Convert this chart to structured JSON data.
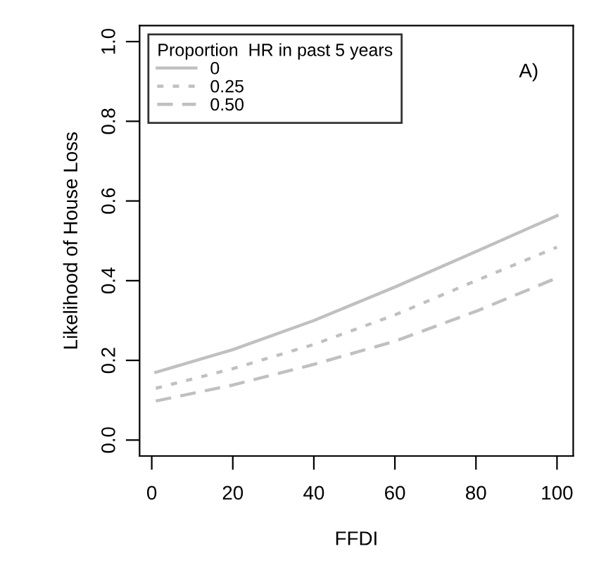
{
  "chart_data": {
    "type": "line",
    "xlabel": "FFDI",
    "ylabel": "Likelihood of House Loss",
    "legend_title": "Proportion  HR in past 5 years",
    "legend": "top left",
    "annotations": [
      "A)"
    ],
    "x": [
      1,
      20,
      40,
      60,
      80,
      100
    ],
    "series": [
      {
        "name": "0",
        "color": "#c0c0c0",
        "line_style": "solid",
        "values": [
          0.17,
          0.227,
          0.3,
          0.384,
          0.473,
          0.563
        ]
      },
      {
        "name": "0.25",
        "color": "#c0c0c0",
        "line_style": "dotted",
        "values": [
          0.13,
          0.179,
          0.24,
          0.314,
          0.4,
          0.484
        ]
      },
      {
        "name": "0.50",
        "color": "#c0c0c0",
        "line_style": "dashed",
        "values": [
          0.098,
          0.138,
          0.19,
          0.248,
          0.323,
          0.407
        ]
      }
    ],
    "xlim": [
      -3,
      104
    ],
    "ylim": [
      -0.04,
      1.04
    ],
    "xticks": [
      0,
      20,
      40,
      60,
      80,
      100
    ],
    "yticks": [
      {
        "value": 0,
        "label": "0.0"
      },
      {
        "value": 0.2,
        "label": "0.2"
      },
      {
        "value": 0.4,
        "label": "0.4"
      },
      {
        "value": 0.6,
        "label": "0.6"
      },
      {
        "value": 0.8,
        "label": "0.8"
      },
      {
        "value": 1,
        "label": "1.0"
      }
    ],
    "grid": false
  }
}
